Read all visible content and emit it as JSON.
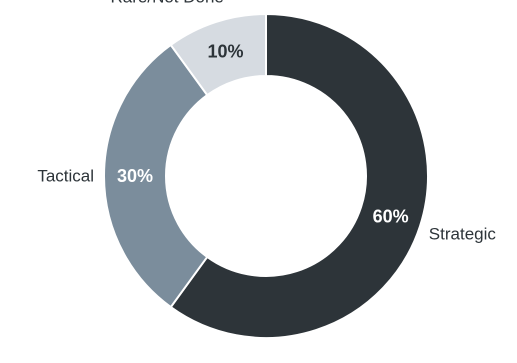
{
  "chart_data": {
    "type": "pie",
    "donut": true,
    "slices": [
      {
        "label": "Strategic",
        "value": 60,
        "value_label": "60%",
        "color": "#2d3439",
        "value_text_color": "#ffffff"
      },
      {
        "label": "Tactical",
        "value": 30,
        "value_label": "30%",
        "color": "#7b8d9c",
        "value_text_color": "#ffffff"
      },
      {
        "label": "Rare/Not Done",
        "value": 10,
        "value_label": "10%",
        "color": "#d6dbe1",
        "value_text_color": "#2d3439"
      }
    ],
    "start_angle_deg": 0,
    "direction": "clockwise",
    "legend": "none"
  }
}
